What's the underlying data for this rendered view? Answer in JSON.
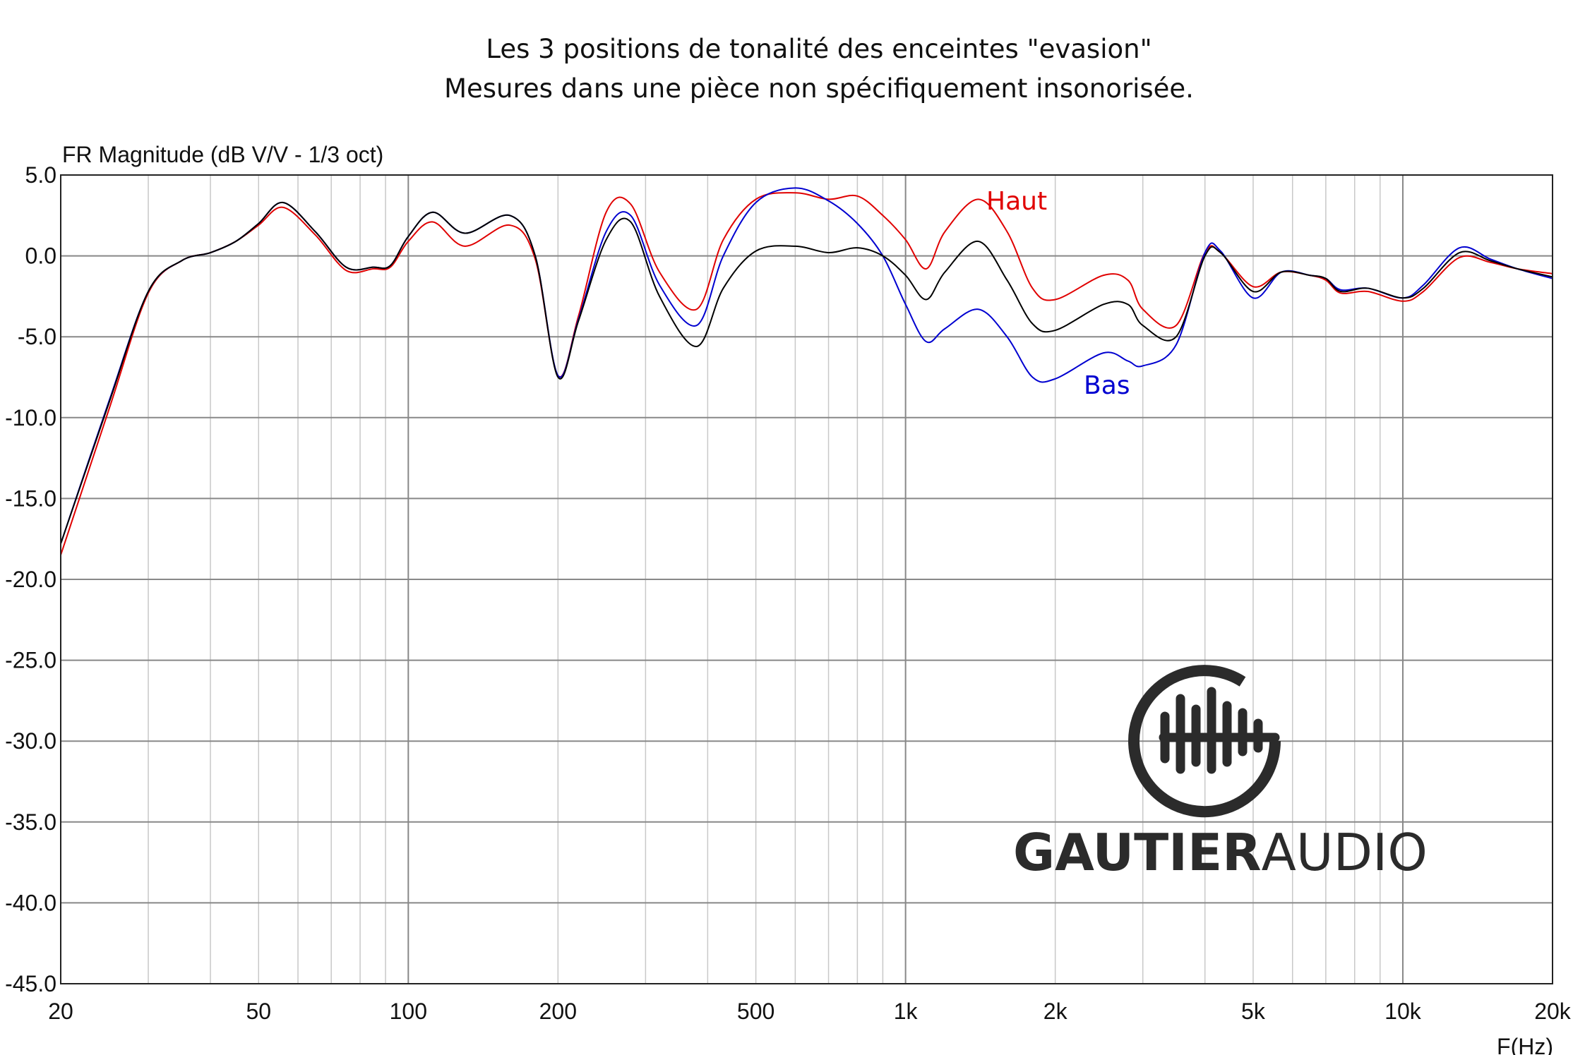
{
  "chart_data": {
    "type": "line",
    "title": [
      "Les 3 positions de tonalité des enceintes \"evasion\"",
      "Mesures dans une pièce non spécifiquement insonorisée."
    ],
    "ylabel": "FR Magnitude (dB V/V - 1/3 oct)",
    "xlabel": "F(Hz)",
    "xscale": "log",
    "xlim": [
      20,
      20000
    ],
    "ylim": [
      -45,
      5
    ],
    "grid": true,
    "yticks": [
      "5.0",
      "0.0",
      "-5.0",
      "-10.0",
      "-15.0",
      "-20.0",
      "-25.0",
      "-30.0",
      "-35.0",
      "-40.0",
      "-45.0"
    ],
    "xticks": [
      {
        "value": 20,
        "label": "20"
      },
      {
        "value": 50,
        "label": "50"
      },
      {
        "value": 100,
        "label": "100"
      },
      {
        "value": 200,
        "label": "200"
      },
      {
        "value": 500,
        "label": "500"
      },
      {
        "value": 1000,
        "label": "1k"
      },
      {
        "value": 2000,
        "label": "2k"
      },
      {
        "value": 5000,
        "label": "5k"
      },
      {
        "value": 10000,
        "label": "10k"
      },
      {
        "value": 20000,
        "label": "20k"
      }
    ],
    "x": [
      20,
      25,
      30,
      35,
      40,
      45,
      50,
      56,
      65,
      75,
      85,
      92,
      100,
      112,
      130,
      160,
      180,
      200,
      220,
      250,
      280,
      320,
      380,
      430,
      500,
      600,
      700,
      800,
      900,
      1000,
      1100,
      1200,
      1400,
      1600,
      1800,
      2000,
      2500,
      2800,
      3000,
      3500,
      4000,
      4300,
      5000,
      5700,
      6500,
      7000,
      7500,
      8500,
      10000,
      11000,
      13000,
      15000,
      17000,
      20000
    ],
    "series": [
      {
        "key": "milieu",
        "label": "",
        "color": "#000000",
        "values": [
          -17.8,
          -9.1,
          -2.2,
          -0.3,
          0.2,
          0.9,
          2.0,
          3.3,
          1.5,
          -0.7,
          -0.7,
          -0.6,
          1.2,
          2.7,
          1.4,
          2.5,
          0.0,
          -7.5,
          -4.0,
          1.0,
          2.1,
          -2.5,
          -5.6,
          -2.0,
          0.3,
          0.6,
          0.2,
          0.5,
          0.0,
          -1.2,
          -2.7,
          -1.0,
          0.9,
          -1.5,
          -4.2,
          -4.6,
          -3.0,
          -3.0,
          -4.3,
          -5.0,
          0.0,
          0.2,
          -2.2,
          -1.0,
          -1.2,
          -1.4,
          -2.2,
          -2.0,
          -2.6,
          -2.0,
          0.2,
          -0.3,
          -0.8,
          -1.3
        ]
      },
      {
        "key": "haut",
        "label": "Haut",
        "color": "#e00000",
        "values": [
          -18.5,
          -9.5,
          -2.3,
          -0.3,
          0.2,
          0.9,
          1.9,
          3.0,
          1.3,
          -0.9,
          -0.8,
          -0.7,
          0.9,
          2.1,
          0.6,
          1.9,
          -0.2,
          -7.4,
          -3.7,
          2.7,
          3.2,
          -1.0,
          -3.3,
          1.0,
          3.5,
          3.9,
          3.5,
          3.7,
          2.5,
          1.0,
          -0.8,
          1.5,
          3.5,
          1.5,
          -2.0,
          -2.7,
          -1.2,
          -1.5,
          -3.3,
          -4.3,
          0.2,
          0.2,
          -1.9,
          -1.0,
          -1.2,
          -1.5,
          -2.3,
          -2.2,
          -2.8,
          -2.2,
          -0.1,
          -0.4,
          -0.8,
          -1.1
        ]
      },
      {
        "key": "bas",
        "label": "Bas",
        "color": "#0000d0",
        "values": [
          -17.8,
          -9.0,
          -2.2,
          -0.3,
          0.2,
          0.9,
          2.0,
          3.3,
          1.5,
          -0.7,
          -0.7,
          -0.6,
          1.2,
          2.7,
          1.4,
          2.5,
          0.0,
          -7.4,
          -3.9,
          1.5,
          2.5,
          -1.8,
          -4.3,
          0.0,
          3.3,
          4.2,
          3.4,
          2.0,
          0.0,
          -3.0,
          -5.3,
          -4.5,
          -3.3,
          -5.0,
          -7.5,
          -7.6,
          -6.0,
          -6.5,
          -6.8,
          -5.5,
          0.2,
          0.3,
          -2.6,
          -1.0,
          -1.2,
          -1.4,
          -2.1,
          -2.0,
          -2.6,
          -1.8,
          0.5,
          -0.2,
          -0.8,
          -1.4
        ]
      }
    ]
  },
  "logo": {
    "text_bold": "GAUTIER",
    "text_light": "AUDIO"
  }
}
